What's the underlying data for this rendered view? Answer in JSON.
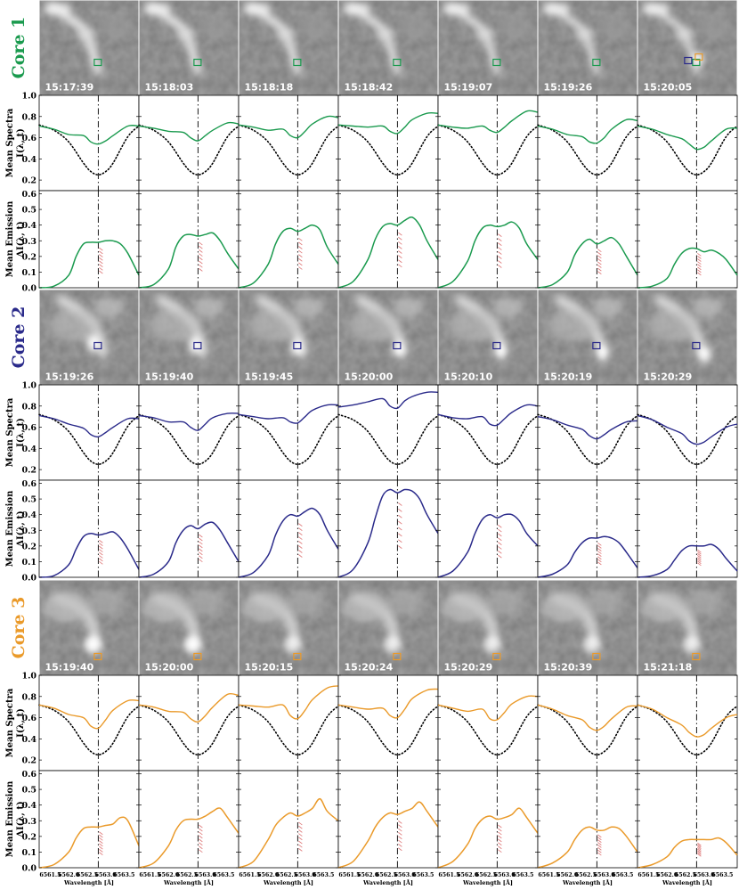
{
  "colors": {
    "core1": "#1a9a4e",
    "core2": "#2a2a8a",
    "core3": "#ea9a2a",
    "band": "#e08080"
  },
  "cores": [
    {
      "label": "Core 1",
      "color_key": "core1",
      "times": [
        "15:17:39",
        "15:18:03",
        "15:18:18",
        "15:18:42",
        "15:19:07",
        "15:19:26",
        "15:20:05"
      ]
    },
    {
      "label": "Core 2",
      "color_key": "core2",
      "times": [
        "15:19:26",
        "15:19:40",
        "15:19:45",
        "15:20:00",
        "15:20:10",
        "15:20:19",
        "15:20:29"
      ]
    },
    {
      "label": "Core 3",
      "color_key": "core3",
      "times": [
        "15:19:40",
        "15:20:00",
        "15:20:15",
        "15:20:24",
        "15:20:29",
        "15:20:39",
        "15:21:18"
      ]
    }
  ],
  "axes": {
    "spectra_ylabel_1": "Mean Spectra",
    "spectra_ylabel_2": "I(λ, t)",
    "emission_ylabel_1": "Mean Emission",
    "emission_ylabel_2": "ΔI(λ, t)",
    "spectra_ticks": [
      "0.2",
      "0.4",
      "0.6",
      "0.8",
      "1.0"
    ],
    "emission_ticks": [
      "0.0",
      "0.1",
      "0.2",
      "0.3",
      "0.4",
      "0.5",
      "0.6"
    ],
    "x_ticks": [
      "6561.5",
      "6562.0",
      "6562.5",
      "6563.0",
      "6563.5"
    ],
    "xlabel": "Wavelength [Å]"
  },
  "chart_data": [
    {
      "type": "line",
      "title": "Mean Spectra I(λ, t)",
      "x_unit": "Wavelength [Å]",
      "xlim": [
        6561.2,
        6563.9
      ],
      "ylim": [
        0.1,
        1.0
      ],
      "line_center": 6562.8,
      "reference_profile": {
        "x": [
          6561.2,
          6561.6,
          6562.0,
          6562.4,
          6562.6,
          6562.8,
          6563.0,
          6563.2,
          6563.6,
          6563.9
        ],
        "y": [
          0.72,
          0.67,
          0.56,
          0.36,
          0.28,
          0.25,
          0.28,
          0.36,
          0.61,
          0.71
        ]
      },
      "series": [
        {
          "core": "Core 1",
          "profiles": [
            [
              0.71,
              0.68,
              0.63,
              0.62,
              0.56,
              0.54,
              0.57,
              0.62,
              0.71,
              0.71
            ],
            [
              0.71,
              0.69,
              0.66,
              0.65,
              0.6,
              0.57,
              0.62,
              0.67,
              0.74,
              0.73
            ],
            [
              0.72,
              0.7,
              0.67,
              0.68,
              0.62,
              0.6,
              0.66,
              0.73,
              0.8,
              0.79
            ],
            [
              0.72,
              0.71,
              0.7,
              0.71,
              0.66,
              0.64,
              0.7,
              0.77,
              0.83,
              0.83
            ],
            [
              0.72,
              0.7,
              0.69,
              0.71,
              0.67,
              0.65,
              0.7,
              0.76,
              0.85,
              0.84
            ],
            [
              0.71,
              0.68,
              0.63,
              0.61,
              0.56,
              0.55,
              0.6,
              0.68,
              0.77,
              0.76
            ],
            [
              0.71,
              0.68,
              0.63,
              0.59,
              0.54,
              0.49,
              0.51,
              0.57,
              0.68,
              0.69
            ]
          ]
        },
        {
          "core": "Core 2",
          "profiles": [
            [
              0.71,
              0.68,
              0.63,
              0.59,
              0.53,
              0.51,
              0.55,
              0.6,
              0.68,
              0.68
            ],
            [
              0.71,
              0.69,
              0.65,
              0.65,
              0.6,
              0.57,
              0.63,
              0.69,
              0.73,
              0.73
            ],
            [
              0.72,
              0.7,
              0.68,
              0.69,
              0.65,
              0.64,
              0.7,
              0.76,
              0.81,
              0.81
            ],
            [
              0.79,
              0.81,
              0.84,
              0.87,
              0.8,
              0.78,
              0.85,
              0.89,
              0.93,
              0.93
            ],
            [
              0.72,
              0.69,
              0.68,
              0.7,
              0.63,
              0.62,
              0.68,
              0.74,
              0.81,
              0.8
            ],
            [
              0.7,
              0.67,
              0.62,
              0.58,
              0.52,
              0.49,
              0.53,
              0.58,
              0.65,
              0.66
            ],
            [
              0.71,
              0.67,
              0.6,
              0.54,
              0.47,
              0.44,
              0.46,
              0.51,
              0.6,
              0.63
            ]
          ]
        },
        {
          "core": "Core 3",
          "profiles": [
            [
              0.72,
              0.69,
              0.63,
              0.6,
              0.52,
              0.5,
              0.58,
              0.67,
              0.76,
              0.76
            ],
            [
              0.72,
              0.7,
              0.66,
              0.65,
              0.59,
              0.56,
              0.62,
              0.7,
              0.82,
              0.81
            ],
            [
              0.72,
              0.71,
              0.7,
              0.72,
              0.62,
              0.59,
              0.67,
              0.77,
              0.88,
              0.9
            ],
            [
              0.72,
              0.7,
              0.68,
              0.69,
              0.62,
              0.6,
              0.68,
              0.78,
              0.86,
              0.87
            ],
            [
              0.72,
              0.69,
              0.66,
              0.68,
              0.59,
              0.58,
              0.65,
              0.73,
              0.8,
              0.8
            ],
            [
              0.72,
              0.68,
              0.62,
              0.58,
              0.51,
              0.48,
              0.52,
              0.59,
              0.7,
              0.71
            ],
            [
              0.72,
              0.68,
              0.6,
              0.53,
              0.46,
              0.42,
              0.44,
              0.5,
              0.6,
              0.63
            ]
          ]
        }
      ]
    },
    {
      "type": "line",
      "title": "Mean Emission ΔI(λ, t)",
      "x_unit": "Wavelength [Å]",
      "xlim": [
        6561.2,
        6563.9
      ],
      "ylim": [
        0.0,
        0.62
      ],
      "line_center": 6562.8,
      "x": [
        6561.2,
        6561.6,
        6562.0,
        6562.2,
        6562.4,
        6562.6,
        6562.8,
        6563.0,
        6563.2,
        6563.4,
        6563.6,
        6563.9
      ],
      "series": [
        {
          "core": "Core 1",
          "profiles": [
            [
              0.0,
              0.01,
              0.08,
              0.2,
              0.28,
              0.29,
              0.29,
              0.3,
              0.3,
              0.28,
              0.22,
              0.08
            ],
            [
              0.0,
              0.02,
              0.12,
              0.26,
              0.33,
              0.34,
              0.33,
              0.34,
              0.35,
              0.3,
              0.22,
              0.12
            ],
            [
              0.0,
              0.03,
              0.15,
              0.28,
              0.36,
              0.38,
              0.36,
              0.38,
              0.4,
              0.37,
              0.26,
              0.15
            ],
            [
              0.0,
              0.04,
              0.18,
              0.31,
              0.39,
              0.41,
              0.4,
              0.43,
              0.45,
              0.4,
              0.3,
              0.18
            ],
            [
              0.0,
              0.04,
              0.17,
              0.3,
              0.38,
              0.4,
              0.39,
              0.4,
              0.42,
              0.38,
              0.28,
              0.18
            ],
            [
              0.0,
              0.02,
              0.1,
              0.21,
              0.28,
              0.31,
              0.28,
              0.3,
              0.32,
              0.28,
              0.2,
              0.08
            ],
            [
              0.0,
              0.01,
              0.06,
              0.15,
              0.22,
              0.25,
              0.25,
              0.23,
              0.24,
              0.22,
              0.18,
              0.08
            ]
          ]
        },
        {
          "core": "Core 2",
          "profiles": [
            [
              0.0,
              0.01,
              0.08,
              0.18,
              0.26,
              0.28,
              0.27,
              0.28,
              0.29,
              0.25,
              0.18,
              0.05
            ],
            [
              0.0,
              0.02,
              0.1,
              0.22,
              0.3,
              0.33,
              0.31,
              0.34,
              0.35,
              0.3,
              0.22,
              0.1
            ],
            [
              0.0,
              0.03,
              0.14,
              0.27,
              0.36,
              0.4,
              0.39,
              0.42,
              0.44,
              0.4,
              0.3,
              0.18
            ],
            [
              0.0,
              0.05,
              0.22,
              0.38,
              0.52,
              0.56,
              0.54,
              0.56,
              0.55,
              0.5,
              0.4,
              0.28
            ],
            [
              0.0,
              0.04,
              0.16,
              0.28,
              0.37,
              0.4,
              0.38,
              0.4,
              0.4,
              0.36,
              0.28,
              0.2
            ],
            [
              0.0,
              0.02,
              0.08,
              0.16,
              0.22,
              0.25,
              0.25,
              0.26,
              0.25,
              0.22,
              0.16,
              0.06
            ],
            [
              0.0,
              0.01,
              0.05,
              0.11,
              0.17,
              0.2,
              0.2,
              0.2,
              0.21,
              0.18,
              0.12,
              0.04
            ]
          ]
        },
        {
          "core": "Core 3",
          "profiles": [
            [
              0.0,
              0.02,
              0.1,
              0.19,
              0.25,
              0.26,
              0.26,
              0.27,
              0.28,
              0.32,
              0.3,
              0.14
            ],
            [
              0.0,
              0.03,
              0.14,
              0.24,
              0.3,
              0.31,
              0.31,
              0.33,
              0.36,
              0.38,
              0.32,
              0.22
            ],
            [
              0.0,
              0.04,
              0.18,
              0.27,
              0.32,
              0.35,
              0.33,
              0.35,
              0.38,
              0.44,
              0.36,
              0.3
            ],
            [
              0.0,
              0.04,
              0.17,
              0.26,
              0.32,
              0.35,
              0.34,
              0.36,
              0.38,
              0.42,
              0.36,
              0.26
            ],
            [
              0.0,
              0.04,
              0.15,
              0.25,
              0.31,
              0.33,
              0.31,
              0.32,
              0.34,
              0.38,
              0.32,
              0.22
            ],
            [
              0.0,
              0.03,
              0.1,
              0.18,
              0.24,
              0.26,
              0.24,
              0.24,
              0.26,
              0.25,
              0.2,
              0.1
            ],
            [
              0.0,
              0.02,
              0.07,
              0.13,
              0.17,
              0.18,
              0.18,
              0.18,
              0.18,
              0.19,
              0.16,
              0.08
            ]
          ]
        }
      ]
    }
  ]
}
